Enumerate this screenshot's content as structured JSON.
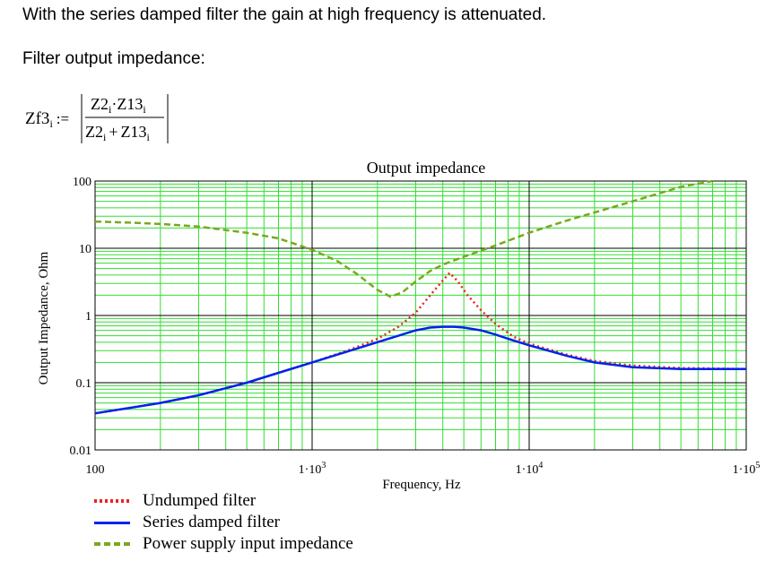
{
  "intro": {
    "line1": "With the series damped filter the gain at high frequency is attenuated.",
    "line2": "Filter output impedance:"
  },
  "formula": {
    "lhs_name": "Zf3",
    "lhs_sub": "i",
    "assign": ":=",
    "num_a": "Z2",
    "num_a_sub": "i",
    "num_op": "·",
    "num_b": "Z13",
    "num_b_sub": "i",
    "den_a": "Z2",
    "den_a_sub": "i",
    "den_op": "+",
    "den_b": "Z13",
    "den_b_sub": "i"
  },
  "colors": {
    "grid": "#33dd33",
    "major_grid": "#000000",
    "undumped": "#ee2222",
    "damped": "#0022ee",
    "supply": "#7aa81e"
  },
  "chart_data": {
    "type": "line",
    "title": "Output impedance",
    "xlabel": "Frequency, Hz",
    "ylabel": "Output Impedance, Ohm",
    "x_scale": "log",
    "y_scale": "log",
    "xlim": [
      100,
      100000
    ],
    "ylim": [
      0.01,
      100
    ],
    "grid": true,
    "legend_position": "bottom-left",
    "x_ticks": [
      {
        "value": 100,
        "mant": "100",
        "exp": ""
      },
      {
        "value": 1000,
        "mant": "1·10",
        "exp": "3"
      },
      {
        "value": 10000,
        "mant": "1·10",
        "exp": "4"
      },
      {
        "value": 100000,
        "mant": "1·10",
        "exp": "5"
      }
    ],
    "y_ticks": [
      {
        "value": 100,
        "label": "100"
      },
      {
        "value": 10,
        "label": "10"
      },
      {
        "value": 1,
        "label": "1"
      },
      {
        "value": 0.1,
        "label": "0.1"
      },
      {
        "value": 0.01,
        "label": "0.01"
      }
    ],
    "series": [
      {
        "name": "Undumped filter",
        "style": "dotted",
        "color": "#ee2222",
        "x": [
          100,
          150,
          200,
          300,
          500,
          700,
          1000,
          1500,
          2000,
          2500,
          3000,
          3500,
          4000,
          4300,
          4700,
          5200,
          6000,
          7000,
          8500,
          10000,
          15000,
          20000,
          30000,
          50000,
          100000
        ],
        "y": [
          0.035,
          0.043,
          0.05,
          0.065,
          0.1,
          0.14,
          0.2,
          0.31,
          0.45,
          0.68,
          1.1,
          2.0,
          3.3,
          4.3,
          3.2,
          2.0,
          1.2,
          0.75,
          0.48,
          0.38,
          0.26,
          0.21,
          0.18,
          0.165,
          0.16
        ]
      },
      {
        "name": "Series damped filter",
        "style": "solid",
        "color": "#0022ee",
        "x": [
          100,
          150,
          200,
          300,
          500,
          700,
          1000,
          1500,
          2000,
          2500,
          3000,
          3500,
          4000,
          4500,
          5000,
          6000,
          7000,
          8000,
          10000,
          15000,
          20000,
          30000,
          50000,
          100000
        ],
        "y": [
          0.035,
          0.043,
          0.05,
          0.065,
          0.1,
          0.14,
          0.2,
          0.3,
          0.4,
          0.5,
          0.6,
          0.66,
          0.68,
          0.68,
          0.66,
          0.6,
          0.52,
          0.45,
          0.36,
          0.25,
          0.2,
          0.17,
          0.16,
          0.16
        ]
      },
      {
        "name": "Power supply input impedance",
        "style": "dashed",
        "color": "#7aa81e",
        "x": [
          100,
          150,
          200,
          300,
          500,
          700,
          1000,
          1300,
          1600,
          2000,
          2300,
          2600,
          3000,
          3500,
          4000,
          5000,
          7000,
          10000,
          15000,
          20000,
          30000,
          50000,
          70000
        ],
        "y": [
          25,
          24,
          23,
          21,
          17,
          14,
          9.5,
          6.5,
          4.2,
          2.4,
          1.9,
          2.2,
          3.2,
          4.6,
          5.7,
          7.5,
          11,
          17,
          26,
          34,
          50,
          82,
          100
        ]
      }
    ]
  }
}
